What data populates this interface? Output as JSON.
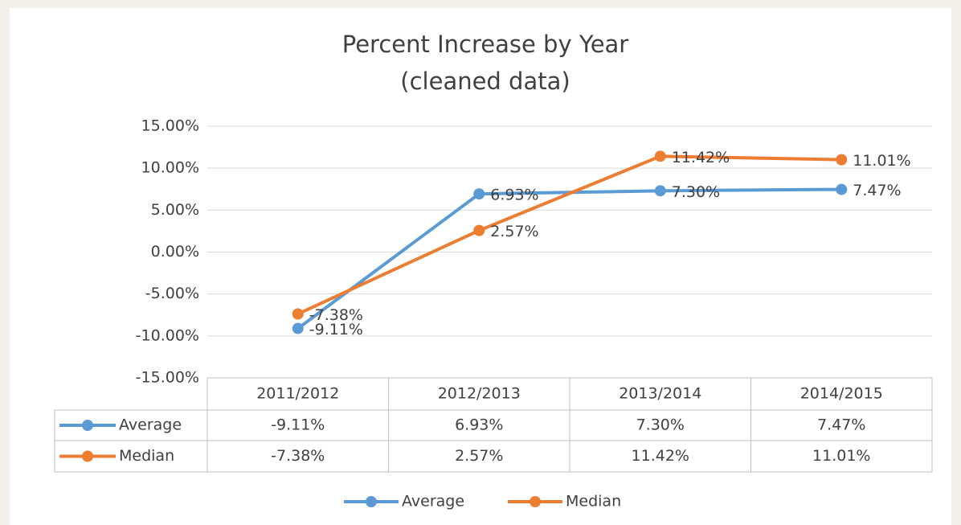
{
  "chart_data": {
    "type": "line",
    "title": "Percent Increase by Year",
    "subtitle": "(cleaned data)",
    "categories": [
      "2011/2012",
      "2012/2013",
      "2013/2014",
      "2014/2015"
    ],
    "series": [
      {
        "name": "Average",
        "color": "#5b9bd5",
        "values": [
          -9.11,
          6.93,
          7.3,
          7.47
        ],
        "value_labels": [
          "-9.11%",
          "6.93%",
          "7.30%",
          "7.47%"
        ]
      },
      {
        "name": "Median",
        "color": "#ed7d31",
        "values": [
          -7.38,
          2.57,
          11.42,
          11.01
        ],
        "value_labels": [
          "-7.38%",
          "2.57%",
          "11.42%",
          "11.01%"
        ]
      }
    ],
    "ylim": [
      -15,
      15
    ],
    "yticks": [
      {
        "value": -15,
        "label": "-15.00%"
      },
      {
        "value": -10,
        "label": "-10.00%"
      },
      {
        "value": -5,
        "label": "-5.00%"
      },
      {
        "value": 0,
        "label": "0.00%"
      },
      {
        "value": 5,
        "label": "5.00%"
      },
      {
        "value": 10,
        "label": "10.00%"
      },
      {
        "value": 15,
        "label": "15.00%"
      }
    ],
    "grid": true,
    "legend": "bottom"
  }
}
